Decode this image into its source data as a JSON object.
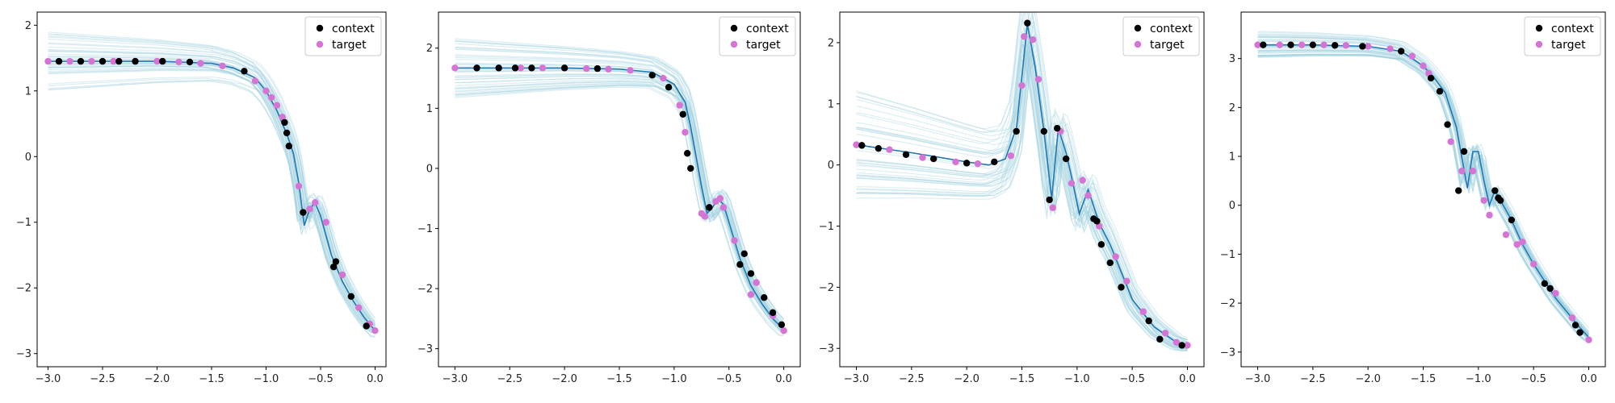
{
  "chart_data": [
    {
      "type": "scatter",
      "xlim": [
        -3.1,
        0.1
      ],
      "ylim": [
        -3.2,
        2.2
      ],
      "xticks": [
        -3.0,
        -2.5,
        -2.0,
        -1.5,
        -1.0,
        -0.5,
        0.0
      ],
      "xtick_labels": [
        "−3.0",
        "−2.5",
        "−2.0",
        "−1.5",
        "−1.0",
        "−0.5",
        "0.0"
      ],
      "yticks": [
        -3,
        -2,
        -1,
        0,
        1,
        2
      ],
      "ytick_labels": [
        "−3",
        "−2",
        "−1",
        "0",
        "1",
        "2"
      ],
      "legend": {
        "placement": "top-right",
        "entries": [
          {
            "label": "context",
            "color": "#000000"
          },
          {
            "label": "target",
            "color": "#d674d6"
          }
        ]
      },
      "colors": {
        "samples": "#9ccfdc",
        "prediction": "#1f77b4",
        "context": "#000000",
        "target": "#d674d6"
      },
      "samples": {
        "spread_left": 0.45,
        "spread_right": 0.1
      },
      "series": [
        {
          "name": "prediction",
          "x": [
            -3.0,
            -2.5,
            -2.0,
            -1.5,
            -1.3,
            -1.1,
            -1.0,
            -0.9,
            -0.8,
            -0.75,
            -0.7,
            -0.65,
            -0.6,
            -0.55,
            -0.5,
            -0.4,
            -0.3,
            -0.2,
            -0.1,
            0.0
          ],
          "y": [
            1.45,
            1.45,
            1.45,
            1.42,
            1.35,
            1.2,
            1.0,
            0.7,
            0.3,
            0.05,
            -0.4,
            -1.05,
            -0.8,
            -0.7,
            -0.9,
            -1.5,
            -1.9,
            -2.2,
            -2.45,
            -2.65
          ]
        }
      ],
      "context_points": {
        "x": [
          -2.9,
          -2.7,
          -2.5,
          -2.35,
          -2.2,
          -1.95,
          -1.7,
          -1.2,
          -0.83,
          -0.81,
          -0.79,
          -0.66,
          -0.38,
          -0.36,
          -0.22,
          -0.08
        ],
        "y": [
          1.45,
          1.45,
          1.45,
          1.45,
          1.45,
          1.45,
          1.44,
          1.3,
          0.52,
          0.36,
          0.16,
          -0.85,
          -1.68,
          -1.6,
          -2.13,
          -2.58
        ]
      },
      "target_points": {
        "x": [
          -3.0,
          -2.8,
          -2.6,
          -2.4,
          -2.2,
          -2.0,
          -1.8,
          -1.6,
          -1.4,
          -1.1,
          -1.0,
          -0.95,
          -0.9,
          -0.85,
          -0.7,
          -0.6,
          -0.55,
          -0.45,
          -0.3,
          -0.15,
          -0.05,
          0.0
        ],
        "y": [
          1.45,
          1.45,
          1.45,
          1.45,
          1.45,
          1.45,
          1.44,
          1.42,
          1.38,
          1.15,
          1.0,
          0.9,
          0.78,
          0.6,
          -0.45,
          -0.8,
          -0.7,
          -1.0,
          -1.8,
          -2.3,
          -2.55,
          -2.65
        ]
      }
    },
    {
      "type": "scatter",
      "xlim": [
        -3.15,
        0.15
      ],
      "ylim": [
        -3.3,
        2.6
      ],
      "xticks": [
        -3.0,
        -2.5,
        -2.0,
        -1.5,
        -1.0,
        -0.5,
        0.0
      ],
      "xtick_labels": [
        "−3.0",
        "−2.5",
        "−2.0",
        "−1.5",
        "−1.0",
        "−0.5",
        "0.0"
      ],
      "yticks": [
        -3,
        -2,
        -1,
        0,
        1,
        2
      ],
      "ytick_labels": [
        "−3",
        "−2",
        "−1",
        "0",
        "1",
        "2"
      ],
      "legend": {
        "placement": "top-right",
        "entries": [
          {
            "label": "context",
            "color": "#000000"
          },
          {
            "label": "target",
            "color": "#d674d6"
          }
        ]
      },
      "colors": {
        "samples": "#9ccfdc",
        "prediction": "#1f77b4",
        "context": "#000000",
        "target": "#d674d6"
      },
      "samples": {
        "spread_left": 0.5,
        "spread_right": 0.1
      },
      "series": [
        {
          "name": "prediction",
          "x": [
            -3.0,
            -2.5,
            -2.0,
            -1.5,
            -1.2,
            -1.0,
            -0.9,
            -0.85,
            -0.8,
            -0.75,
            -0.7,
            -0.65,
            -0.6,
            -0.55,
            -0.5,
            -0.4,
            -0.3,
            -0.2,
            -0.1,
            0.0
          ],
          "y": [
            1.67,
            1.67,
            1.67,
            1.65,
            1.6,
            1.4,
            1.1,
            0.7,
            0.2,
            -0.3,
            -0.75,
            -0.65,
            -0.5,
            -0.6,
            -0.9,
            -1.5,
            -1.95,
            -2.25,
            -2.5,
            -2.68
          ]
        }
      ],
      "context_points": {
        "x": [
          -2.8,
          -2.6,
          -2.45,
          -2.3,
          -2.0,
          -1.7,
          -1.2,
          -1.05,
          -0.92,
          -0.88,
          -0.85,
          -0.68,
          -0.4,
          -0.36,
          -0.3,
          -0.18,
          -0.1,
          -0.02
        ],
        "y": [
          1.67,
          1.67,
          1.67,
          1.67,
          1.67,
          1.66,
          1.55,
          1.35,
          0.9,
          0.25,
          0.0,
          -0.65,
          -1.6,
          -1.42,
          -1.75,
          -2.15,
          -2.4,
          -2.6
        ]
      },
      "target_points": {
        "x": [
          -3.0,
          -2.8,
          -2.6,
          -2.4,
          -2.2,
          -2.0,
          -1.8,
          -1.6,
          -1.4,
          -1.1,
          -0.95,
          -0.9,
          -0.75,
          -0.72,
          -0.62,
          -0.58,
          -0.55,
          -0.45,
          -0.3,
          -0.25,
          -0.1,
          0.0
        ],
        "y": [
          1.67,
          1.67,
          1.67,
          1.67,
          1.67,
          1.67,
          1.66,
          1.65,
          1.63,
          1.5,
          1.05,
          0.6,
          -0.75,
          -0.8,
          -0.55,
          -0.5,
          -0.65,
          -1.2,
          -2.1,
          -1.9,
          -2.45,
          -2.7
        ]
      }
    },
    {
      "type": "scatter",
      "xlim": [
        -3.15,
        0.15
      ],
      "ylim": [
        -3.3,
        2.5
      ],
      "xticks": [
        -3.0,
        -2.5,
        -2.0,
        -1.5,
        -1.0,
        -0.5,
        0.0
      ],
      "xtick_labels": [
        "−3.0",
        "−2.5",
        "−2.0",
        "−1.5",
        "−1.0",
        "−0.5",
        "0.0"
      ],
      "yticks": [
        -3,
        -2,
        -1,
        0,
        1,
        2
      ],
      "ytick_labels": [
        "−3",
        "−2",
        "−1",
        "0",
        "1",
        "2"
      ],
      "legend": {
        "placement": "top-right",
        "entries": [
          {
            "label": "context",
            "color": "#000000"
          },
          {
            "label": "target",
            "color": "#d674d6"
          }
        ]
      },
      "colors": {
        "samples": "#9ccfdc",
        "prediction": "#1f77b4",
        "context": "#000000",
        "target": "#d674d6"
      },
      "samples": {
        "spread_left": 0.9,
        "spread_right": 0.1
      },
      "series": [
        {
          "name": "prediction",
          "x": [
            -3.0,
            -2.5,
            -2.0,
            -1.8,
            -1.65,
            -1.55,
            -1.45,
            -1.38,
            -1.3,
            -1.23,
            -1.17,
            -1.1,
            -1.05,
            -0.98,
            -0.9,
            -0.8,
            -0.7,
            -0.5,
            -0.3,
            -0.1,
            0.0
          ],
          "y": [
            0.33,
            0.2,
            0.05,
            0.0,
            0.1,
            0.6,
            2.3,
            1.6,
            0.55,
            -0.55,
            0.6,
            0.2,
            -0.2,
            -0.8,
            -0.4,
            -0.95,
            -1.3,
            -2.2,
            -2.65,
            -2.9,
            -2.95
          ]
        }
      ],
      "context_points": {
        "x": [
          -2.95,
          -2.8,
          -2.55,
          -2.3,
          -2.0,
          -1.75,
          -1.55,
          -1.45,
          -1.3,
          -1.25,
          -1.18,
          -1.1,
          -0.85,
          -0.82,
          -0.78,
          -0.7,
          -0.6,
          -0.35,
          -0.25,
          -0.05
        ],
        "y": [
          0.32,
          0.27,
          0.17,
          0.1,
          0.03,
          0.05,
          0.55,
          2.32,
          0.55,
          -0.57,
          0.6,
          0.1,
          -0.88,
          -0.92,
          -1.3,
          -1.6,
          -2.0,
          -2.55,
          -2.85,
          -2.95
        ]
      },
      "target_points": {
        "x": [
          -3.0,
          -2.7,
          -2.4,
          -2.1,
          -1.9,
          -1.6,
          -1.5,
          -1.48,
          -1.4,
          -1.35,
          -1.22,
          -1.15,
          -1.05,
          -0.95,
          -0.9,
          -0.8,
          -0.65,
          -0.55,
          -0.4,
          -0.2,
          -0.1,
          0.0
        ],
        "y": [
          0.33,
          0.25,
          0.12,
          0.05,
          0.02,
          0.15,
          1.3,
          2.1,
          2.05,
          1.4,
          -0.7,
          0.55,
          -0.3,
          -0.25,
          -0.5,
          -1.0,
          -1.5,
          -1.9,
          -2.4,
          -2.75,
          -2.9,
          -2.95
        ]
      }
    },
    {
      "type": "scatter",
      "xlim": [
        -3.15,
        0.15
      ],
      "ylim": [
        -3.3,
        3.95
      ],
      "xticks": [
        -3.0,
        -2.5,
        -2.0,
        -1.5,
        -1.0,
        -0.5,
        0.0
      ],
      "xtick_labels": [
        "−3.0",
        "−2.5",
        "−2.0",
        "−1.5",
        "−1.0",
        "−0.5",
        "0.0"
      ],
      "yticks": [
        -3,
        -2,
        -1,
        0,
        1,
        2,
        3
      ],
      "ytick_labels": [
        "−3",
        "−2",
        "−1",
        "0",
        "1",
        "2",
        "3"
      ],
      "legend": {
        "placement": "top-right",
        "entries": [
          {
            "label": "context",
            "color": "#000000"
          },
          {
            "label": "target",
            "color": "#d674d6"
          }
        ]
      },
      "colors": {
        "samples": "#9ccfdc",
        "prediction": "#1f77b4",
        "context": "#000000",
        "target": "#d674d6"
      },
      "samples": {
        "spread_left": 0.3,
        "spread_right": 0.1
      },
      "series": [
        {
          "name": "prediction",
          "x": [
            -3.0,
            -2.5,
            -2.0,
            -1.7,
            -1.5,
            -1.4,
            -1.3,
            -1.2,
            -1.1,
            -1.05,
            -1.0,
            -0.95,
            -0.9,
            -0.85,
            -0.8,
            -0.7,
            -0.6,
            -0.5,
            -0.3,
            -0.1,
            0.0
          ],
          "y": [
            3.28,
            3.28,
            3.25,
            3.15,
            2.85,
            2.6,
            2.3,
            1.6,
            0.35,
            1.1,
            1.1,
            0.5,
            0.0,
            0.3,
            0.1,
            -0.3,
            -0.8,
            -1.2,
            -1.9,
            -2.45,
            -2.7
          ]
        }
      ],
      "context_points": {
        "x": [
          -2.95,
          -2.7,
          -2.5,
          -2.3,
          -2.05,
          -1.7,
          -1.43,
          -1.35,
          -1.28,
          -1.18,
          -1.13,
          -0.85,
          -0.82,
          -0.8,
          -0.7,
          -0.4,
          -0.35,
          -0.12,
          -0.08
        ],
        "y": [
          3.28,
          3.28,
          3.28,
          3.27,
          3.25,
          3.15,
          2.6,
          2.33,
          1.65,
          0.3,
          1.1,
          0.3,
          0.15,
          0.1,
          -0.3,
          -1.6,
          -1.7,
          -2.45,
          -2.6
        ]
      },
      "target_points": {
        "x": [
          -3.0,
          -2.8,
          -2.6,
          -2.4,
          -2.2,
          -2.0,
          -1.8,
          -1.6,
          -1.5,
          -1.45,
          -1.25,
          -1.15,
          -1.05,
          -0.95,
          -0.9,
          -0.75,
          -0.65,
          -0.6,
          -0.5,
          -0.3,
          -0.15,
          0.0
        ],
        "y": [
          3.28,
          3.28,
          3.28,
          3.28,
          3.27,
          3.25,
          3.2,
          3.05,
          2.85,
          2.7,
          1.3,
          0.7,
          0.7,
          0.1,
          -0.2,
          -0.6,
          -0.8,
          -0.75,
          -1.2,
          -1.8,
          -2.3,
          -2.75
        ]
      }
    }
  ]
}
